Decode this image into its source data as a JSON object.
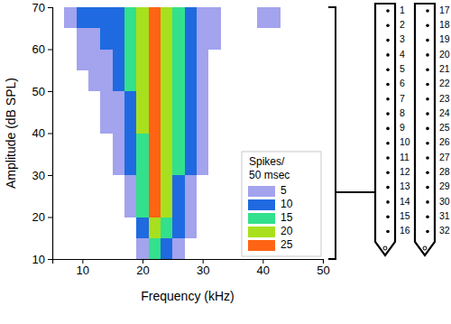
{
  "chart_data": {
    "type": "heatmap",
    "x_label": "Frequency (kHz)",
    "y_label": "Amplitude (dB SPL)",
    "xlim": [
      5,
      50
    ],
    "xticks": [
      10,
      20,
      30,
      40,
      50
    ],
    "ylim": [
      10,
      70
    ],
    "yticks": [
      10,
      20,
      30,
      40,
      50,
      60,
      70
    ],
    "x": [
      6,
      8,
      10,
      12,
      14,
      16,
      18,
      20,
      22,
      24,
      26,
      28,
      30,
      32,
      34,
      36,
      38,
      40,
      42,
      44,
      46,
      48,
      50
    ],
    "y": [
      12.5,
      17.5,
      22.5,
      27.5,
      32.5,
      37.5,
      42.5,
      47.5,
      52.5,
      57.5,
      62.5,
      67.5
    ],
    "values": [
      [
        0,
        0,
        0,
        0,
        0,
        0,
        0,
        7,
        17,
        13,
        7,
        0,
        0,
        0,
        0,
        0,
        0,
        0,
        0,
        0,
        0,
        0,
        0
      ],
      [
        0,
        0,
        0,
        0,
        0,
        0,
        0,
        11,
        23,
        18,
        10,
        5,
        0,
        0,
        0,
        0,
        0,
        0,
        0,
        0,
        0,
        0,
        0
      ],
      [
        0,
        0,
        0,
        0,
        0,
        0,
        5,
        15,
        25,
        21,
        13,
        7,
        0,
        0,
        0,
        0,
        0,
        0,
        0,
        0,
        0,
        0,
        0
      ],
      [
        0,
        0,
        0,
        0,
        0,
        0,
        7,
        17,
        26,
        22,
        14,
        8,
        0,
        0,
        0,
        0,
        0,
        0,
        0,
        0,
        0,
        0,
        0
      ],
      [
        0,
        0,
        0,
        0,
        0,
        5,
        10,
        18,
        27,
        23,
        15,
        10,
        5,
        0,
        0,
        0,
        0,
        0,
        0,
        0,
        0,
        0,
        0
      ],
      [
        0,
        0,
        0,
        0,
        0,
        6,
        12,
        19,
        27,
        23,
        16,
        10,
        5,
        0,
        0,
        0,
        0,
        0,
        0,
        0,
        0,
        0,
        0
      ],
      [
        0,
        0,
        0,
        0,
        5,
        8,
        13,
        20,
        27,
        24,
        16,
        11,
        6,
        0,
        0,
        0,
        0,
        0,
        0,
        0,
        0,
        0,
        0
      ],
      [
        0,
        0,
        0,
        0,
        6,
        9,
        14,
        20,
        26,
        24,
        17,
        11,
        6,
        0,
        0,
        0,
        0,
        0,
        0,
        0,
        0,
        0,
        0
      ],
      [
        0,
        0,
        0,
        5,
        7,
        11,
        15,
        20,
        26,
        24,
        17,
        12,
        7,
        3,
        0,
        0,
        0,
        0,
        0,
        0,
        0,
        0,
        0
      ],
      [
        0,
        0,
        5,
        6,
        8,
        12,
        16,
        21,
        26,
        23,
        17,
        12,
        7,
        4,
        0,
        0,
        0,
        0,
        0,
        0,
        0,
        0,
        0
      ],
      [
        0,
        3,
        8,
        7,
        11,
        13,
        16,
        21,
        26,
        22,
        16,
        12,
        7,
        5,
        0,
        0,
        0,
        0,
        0,
        0,
        0,
        0,
        0
      ],
      [
        0,
        6,
        14,
        12,
        14,
        12,
        17,
        22,
        26,
        21,
        16,
        12,
        7,
        5,
        0,
        0,
        0,
        6,
        5,
        0,
        0,
        0,
        0
      ]
    ],
    "colorbar": {
      "title": [
        "Spikes/",
        "50 msec"
      ],
      "ticks": [
        5,
        10,
        15,
        20,
        25
      ],
      "colors": [
        "#a3a3ee",
        "#1f6ae0",
        "#33e08c",
        "#a8e01e",
        "#ff6414"
      ]
    }
  },
  "diagram": {
    "shanks": [
      [
        1,
        2,
        3,
        4,
        5,
        6,
        7,
        8,
        9,
        10,
        11,
        12,
        13,
        14,
        15,
        16
      ],
      [
        17,
        18,
        19,
        20,
        21,
        22,
        23,
        24,
        25,
        26,
        27,
        28,
        29,
        30,
        31,
        32
      ]
    ]
  }
}
